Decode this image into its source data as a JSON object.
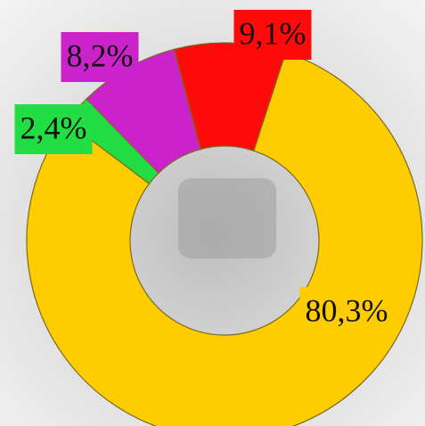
{
  "chart_data": {
    "type": "pie",
    "values": [
      80.3,
      2.4,
      8.2,
      9.1
    ],
    "value_labels": [
      "80,3%",
      "2,4%",
      "8,2%",
      "9,1%"
    ],
    "colors": [
      "#ffcc00",
      "#22dd44",
      "#cc22cc",
      "#ff0a0a"
    ]
  }
}
